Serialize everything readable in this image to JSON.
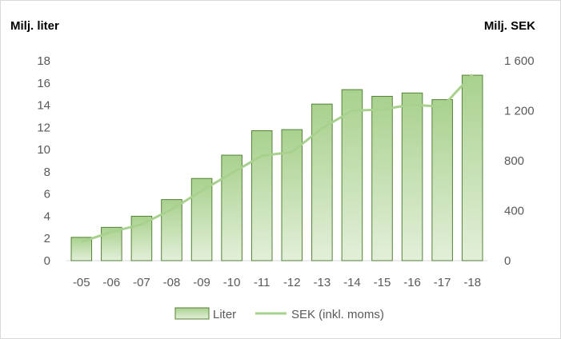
{
  "chart_data": {
    "type": "bar",
    "categories": [
      "-05",
      "-06",
      "-07",
      "-08",
      "-09",
      "-10",
      "-11",
      "-12",
      "-13",
      "-14",
      "-15",
      "-16",
      "-17",
      "-18"
    ],
    "series": [
      {
        "name": "Liter",
        "type": "bar",
        "axis": "left",
        "values": [
          2.1,
          3.0,
          4.0,
          5.5,
          7.4,
          9.5,
          11.7,
          11.8,
          14.1,
          15.4,
          14.8,
          15.1,
          14.5,
          16.7
        ]
      },
      {
        "name": "SEK (inkl. moms)",
        "type": "line",
        "axis": "right",
        "values": [
          150,
          230,
          290,
          410,
          560,
          700,
          840,
          870,
          1060,
          1200,
          1210,
          1250,
          1230,
          1490
        ]
      }
    ],
    "ylabel": "Milj. liter",
    "y2label": "Milj. SEK",
    "ylim": [
      0,
      18
    ],
    "y2lim": [
      0,
      1600
    ],
    "yticks": [
      "0",
      "2",
      "4",
      "6",
      "8",
      "10",
      "12",
      "14",
      "16",
      "18"
    ],
    "y2ticks": [
      "0",
      "400",
      "800",
      "1 200",
      "1 600"
    ],
    "grid": false,
    "legend": "bottom-center",
    "colors": {
      "bar_fill_top": "#a9d18e",
      "bar_fill_bottom": "#e2efd9",
      "bar_stroke": "#548235",
      "line": "#a9d18e",
      "axis_line": "#d9d9d9"
    }
  }
}
